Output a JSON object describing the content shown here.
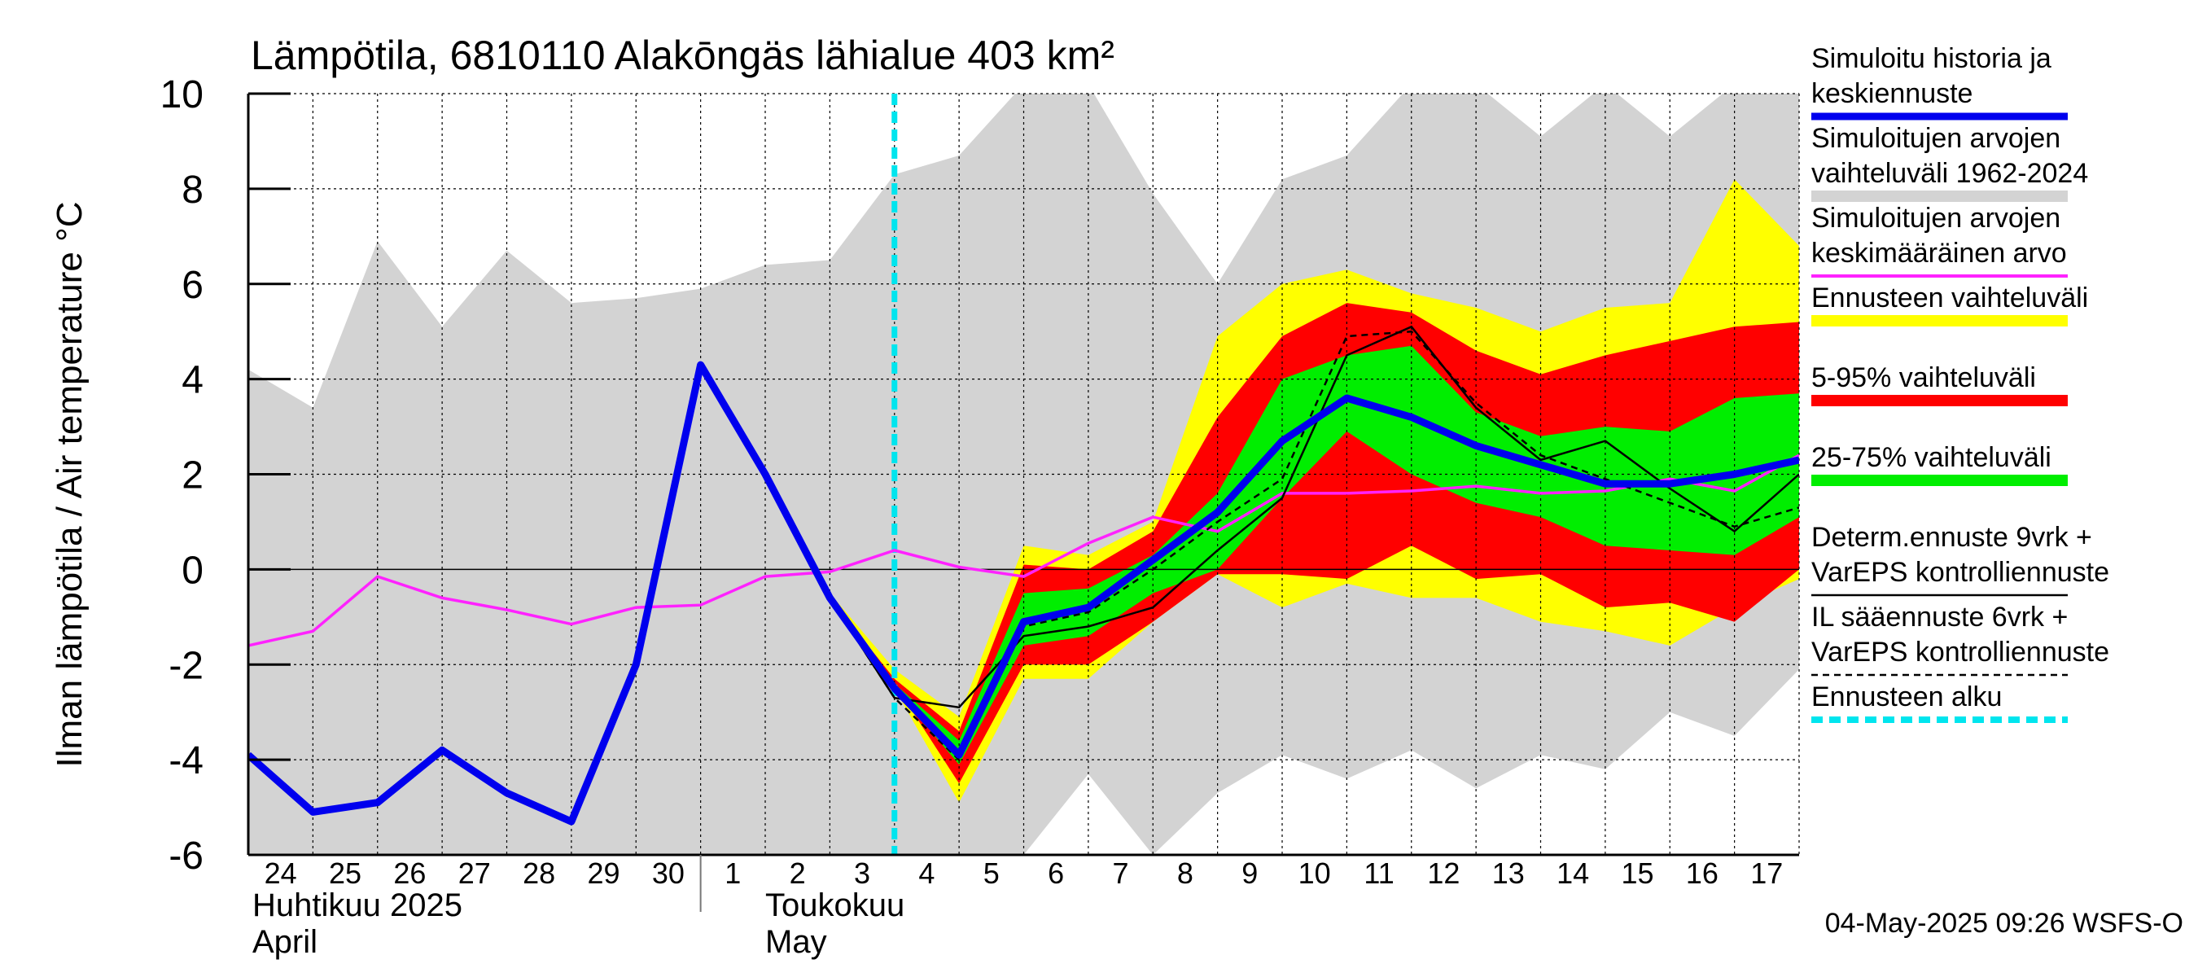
{
  "chart_data": {
    "type": "area",
    "title": "Lämpötila, 6810110 Alakōngäs lähialue 403 km²",
    "ylabel": "Ilman lämpötila / Air temperature   °C",
    "ylim": [
      -6,
      10
    ],
    "yticks": [
      "10",
      "8",
      "6",
      "4",
      "2",
      "0",
      "-2",
      "-4",
      "-6"
    ],
    "x_day_labels": [
      "24",
      "25",
      "26",
      "27",
      "28",
      "29",
      "30",
      "1",
      "2",
      "3",
      "4",
      "5",
      "6",
      "7",
      "8",
      "9",
      "10",
      "11",
      "12",
      "13",
      "14",
      "15",
      "16",
      "17"
    ],
    "month_labels": [
      {
        "fi": "Huhtikuu  2025",
        "en": "April"
      },
      {
        "fi": "Toukokuu",
        "en": "May"
      }
    ],
    "forecast_start_day": 10,
    "timestamp": "04-May-2025 09:26 WSFS-O",
    "legend": [
      {
        "label1": "Simuloitu historia ja",
        "label2": "keskiennuste",
        "color": "#0000ee",
        "style": "thick"
      },
      {
        "label1": "Simuloitujen arvojen",
        "label2": "vaihteluväli 1962-2024",
        "color": "#d3d3d3",
        "style": "band"
      },
      {
        "label1": "Simuloitujen arvojen",
        "label2": "keskimääräinen arvo",
        "color": "#ff22ff",
        "style": "line"
      },
      {
        "label1": "Ennusteen vaihteluväli",
        "label2": "",
        "color": "#ffff00",
        "style": "band"
      },
      {
        "label1": "5-95% vaihteluväli",
        "label2": "",
        "color": "#ff0000",
        "style": "band"
      },
      {
        "label1": "25-75% vaihteluväli",
        "label2": "",
        "color": "#00ee00",
        "style": "band"
      },
      {
        "label1": "Determ.ennuste 9vrk +",
        "label2": "VarEPS kontrolliennuste",
        "color": "#000000",
        "style": "thin"
      },
      {
        "label1": "IL sääennuste 6vrk  +",
        "label2": "  VarEPS kontrolliennuste",
        "color": "#000000",
        "style": "dashed"
      },
      {
        "label1": "Ennusteen alku",
        "label2": "",
        "color": "#00e5ee",
        "style": "cyan-dashed"
      }
    ],
    "series": {
      "hist_range": {
        "x": [
          0,
          1,
          2,
          3,
          4,
          5,
          6,
          7,
          8,
          9,
          10,
          11,
          12,
          13,
          14,
          15,
          16,
          17,
          18,
          19,
          20,
          21,
          22,
          23,
          24
        ],
        "upper": [
          4.2,
          3.4,
          6.9,
          5.1,
          6.7,
          5.6,
          5.7,
          5.9,
          6.4,
          6.5,
          8.3,
          8.7,
          10.2,
          10.2,
          7.9,
          6.0,
          8.2,
          8.7,
          10.2,
          10.2,
          9.1,
          10.2,
          9.1,
          10.2,
          10.2
        ],
        "lower": [
          -6.2,
          -6.2,
          -6.2,
          -6.2,
          -6.2,
          -6.2,
          -6.2,
          -6.2,
          -6.2,
          -6.2,
          -6.2,
          -6.2,
          -6.0,
          -4.3,
          -6.0,
          -4.7,
          -3.9,
          -4.4,
          -3.8,
          -4.6,
          -3.9,
          -4.2,
          -3.0,
          -3.5,
          -2.1
        ]
      },
      "ens_full": {
        "x": [
          9,
          10,
          11,
          12,
          13,
          14,
          15,
          16,
          17,
          18,
          19,
          20,
          21,
          22,
          23,
          24
        ],
        "upper": [
          -0.5,
          -2.1,
          -3.1,
          0.5,
          0.3,
          1.0,
          4.9,
          6.0,
          6.3,
          5.8,
          5.5,
          5.0,
          5.5,
          5.6,
          8.2,
          6.8
        ],
        "lower": [
          -0.6,
          -2.5,
          -4.9,
          -2.3,
          -2.3,
          -1.1,
          -0.1,
          -0.8,
          -0.3,
          -0.6,
          -0.6,
          -1.1,
          -1.3,
          -1.6,
          -0.8,
          -0.2
        ]
      },
      "ens_5_95": {
        "x": [
          9,
          10,
          11,
          12,
          13,
          14,
          15,
          16,
          17,
          18,
          19,
          20,
          21,
          22,
          23,
          24
        ],
        "upper": [
          -0.6,
          -2.3,
          -3.4,
          0.1,
          0.0,
          0.8,
          3.2,
          4.9,
          5.6,
          5.4,
          4.6,
          4.1,
          4.5,
          4.8,
          5.1,
          5.2
        ],
        "lower": [
          -0.6,
          -2.4,
          -4.5,
          -2.0,
          -2.0,
          -1.1,
          -0.1,
          -0.1,
          -0.2,
          0.5,
          -0.2,
          -0.1,
          -0.8,
          -0.7,
          -1.1,
          0.0
        ]
      },
      "ens_25_75": {
        "x": [
          9,
          10,
          11,
          12,
          13,
          14,
          15,
          16,
          17,
          18,
          19,
          20,
          21,
          22,
          23,
          24
        ],
        "upper": [
          -0.6,
          -2.4,
          -3.6,
          -0.5,
          -0.4,
          0.3,
          1.6,
          4.0,
          4.5,
          4.7,
          3.3,
          2.8,
          3.0,
          2.9,
          3.6,
          3.7
        ],
        "lower": [
          -0.6,
          -2.5,
          -4.1,
          -1.6,
          -1.4,
          -0.5,
          0.0,
          1.5,
          2.9,
          2.0,
          1.4,
          1.1,
          0.5,
          0.4,
          0.3,
          1.1
        ]
      },
      "mean_forecast": {
        "x": [
          0,
          1,
          2,
          3,
          4,
          5,
          6,
          7,
          8,
          9,
          10,
          11,
          12,
          13,
          14,
          15,
          16,
          17,
          18,
          19,
          20,
          21,
          22,
          23,
          24
        ],
        "y": [
          -3.9,
          -5.1,
          -4.9,
          -3.8,
          -4.7,
          -5.3,
          -2.0,
          4.3,
          2.0,
          -0.6,
          -2.5,
          -3.9,
          -1.1,
          -0.8,
          0.2,
          1.2,
          2.7,
          3.6,
          3.2,
          2.6,
          2.2,
          1.8,
          1.8,
          2.0,
          2.3
        ]
      },
      "hist_mean": {
        "x": [
          0,
          1,
          2,
          3,
          4,
          5,
          6,
          7,
          8,
          9,
          10,
          11,
          12,
          13,
          14,
          15,
          16,
          17,
          18,
          19,
          20,
          21,
          22,
          23,
          24
        ],
        "y": [
          -1.6,
          -1.3,
          -0.15,
          -0.6,
          -0.85,
          -1.15,
          -0.8,
          -0.75,
          -0.15,
          -0.05,
          0.4,
          0.05,
          -0.15,
          0.55,
          1.1,
          0.8,
          1.6,
          1.6,
          1.65,
          1.75,
          1.6,
          1.65,
          1.9,
          1.65,
          2.4
        ]
      },
      "determ": {
        "x": [
          8,
          9,
          10,
          11,
          12,
          13,
          14,
          15,
          16,
          17,
          18,
          19,
          20,
          21,
          22,
          23,
          24
        ],
        "y": [
          2.0,
          -0.6,
          -2.7,
          -2.9,
          -1.4,
          -1.2,
          -0.8,
          0.4,
          1.5,
          4.5,
          5.1,
          3.4,
          2.3,
          2.7,
          1.7,
          0.8,
          2.0
        ]
      },
      "il_forecast": {
        "x": [
          8,
          9,
          10,
          11,
          12,
          13,
          14,
          15,
          16,
          17,
          18,
          19,
          20,
          21,
          22,
          23,
          24
        ],
        "y": [
          2.0,
          -0.6,
          -2.7,
          -4.0,
          -1.2,
          -0.9,
          0.0,
          1.0,
          1.9,
          4.9,
          5.0,
          3.5,
          2.4,
          1.9,
          1.4,
          0.9,
          1.3
        ]
      }
    }
  }
}
